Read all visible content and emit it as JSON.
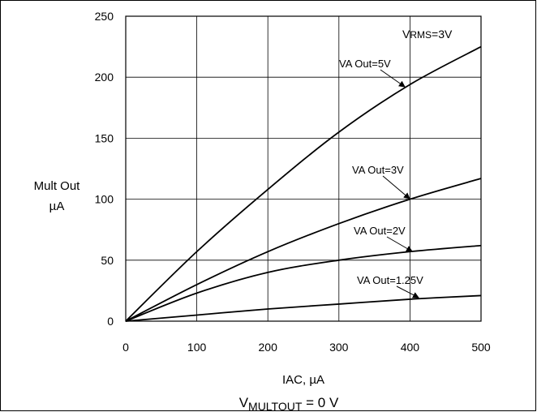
{
  "chart_data": {
    "type": "line",
    "xlabel": "IAC, µA",
    "ylabel": [
      "Mult Out",
      "µA"
    ],
    "caption": {
      "main": "V",
      "sub": "MULTOUT",
      "rest": " = 0 V"
    },
    "xlim": [
      0,
      500
    ],
    "ylim": [
      0,
      250
    ],
    "x_ticks": [
      0,
      100,
      200,
      300,
      400,
      500
    ],
    "y_ticks": [
      0,
      50,
      100,
      150,
      200,
      250
    ],
    "grid": true,
    "condition_label": {
      "main": "V",
      "sub": "RMS",
      "rest": "=3V"
    },
    "series": [
      {
        "name": "VA Out=5V",
        "x": [
          0,
          100,
          200,
          300,
          400,
          500
        ],
        "y": [
          0,
          57,
          108,
          155,
          194,
          225
        ]
      },
      {
        "name": "VA Out=3V",
        "x": [
          0,
          100,
          200,
          300,
          400,
          500
        ],
        "y": [
          0,
          30,
          57,
          80,
          100,
          117
        ]
      },
      {
        "name": "VA Out=2V",
        "x": [
          0,
          100,
          200,
          300,
          400,
          500
        ],
        "y": [
          0,
          23,
          40,
          50,
          57,
          62
        ]
      },
      {
        "name": "VA Out=1.25V",
        "x": [
          0,
          100,
          200,
          300,
          400,
          500
        ],
        "y": [
          0,
          5,
          10,
          14,
          18,
          21
        ]
      }
    ]
  }
}
